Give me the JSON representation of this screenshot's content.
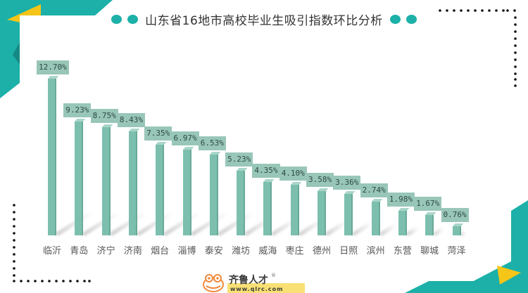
{
  "title": "山东省16地市高校毕业生吸引指数环比分析",
  "colors": {
    "teal": "#1cb0a8",
    "yellow": "#f5c518",
    "bar": "#7cbfae",
    "label_bg": "#98c6b8"
  },
  "chart_data": {
    "type": "bar",
    "title": "山东省16地市高校毕业生吸引指数环比分析",
    "categories": [
      "临沂",
      "青岛",
      "济宁",
      "济南",
      "烟台",
      "淄博",
      "泰安",
      "潍坊",
      "威海",
      "枣庄",
      "德州",
      "日照",
      "滨州",
      "东营",
      "聊城",
      "菏泽"
    ],
    "values": [
      12.7,
      9.23,
      8.75,
      8.43,
      7.35,
      6.97,
      6.53,
      5.23,
      4.35,
      4.1,
      3.58,
      3.36,
      2.74,
      1.98,
      1.67,
      0.76
    ],
    "labels": [
      "12.70%",
      "9.23%",
      "8.75%",
      "8.43%",
      "7.35%",
      "6.97%",
      "6.53%",
      "5.23%",
      "4.35%",
      "4.10%",
      "3.58%",
      "3.36%",
      "2.74%",
      "1.98%",
      "1.67%",
      "0.76%"
    ],
    "xlabel": "",
    "ylabel": "",
    "unit": "%",
    "grid": false,
    "legend": null
  },
  "logo": {
    "name": "齐鲁人才",
    "url_text": "www.qlrc.com",
    "registered": "®"
  }
}
